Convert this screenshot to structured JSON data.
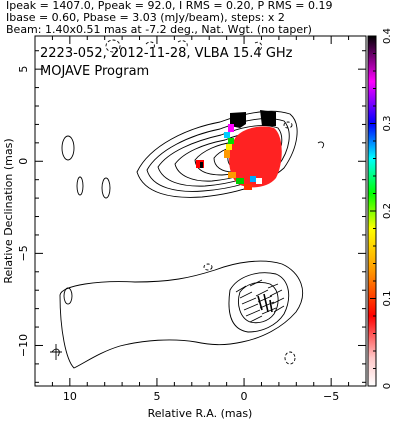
{
  "header": {
    "line1": "Ipeak = 1407.0, Ppeak = 92.0, I RMS = 0.20, P RMS = 0.19",
    "line2": "Ibase = 0.60, Pbase = 3.03 (mJy/beam), steps: x 2",
    "line3": "Beam: 1.40x0.51 mas at -7.2 deg., Nat. Wgt. (no taper)"
  },
  "plot": {
    "annotation_line1": "2223-052, 2012-11-28, VLBA 15.4 GHz",
    "annotation_line2": "MOJAVE Program"
  },
  "chart_data": {
    "type": "heatmap",
    "title": "",
    "xlabel": "Relative R.A. (mas)",
    "ylabel": "Relative Declination (mas)",
    "xlim": [
      12,
      -7
    ],
    "ylim": [
      -12.2,
      6.8
    ],
    "xticks": [
      10,
      5,
      0,
      -5
    ],
    "yticks": [
      5,
      0,
      -5,
      -10
    ],
    "x_reversed": true,
    "colorbar": {
      "min": 0,
      "max": 0.4,
      "ticks": [
        0,
        0.1,
        0.2,
        0.3,
        0.4
      ],
      "tick_labels": [
        "0",
        "0.1",
        "0.2",
        "0.3",
        "0.4"
      ]
    },
    "core_position": [
      0,
      0
    ]
  }
}
